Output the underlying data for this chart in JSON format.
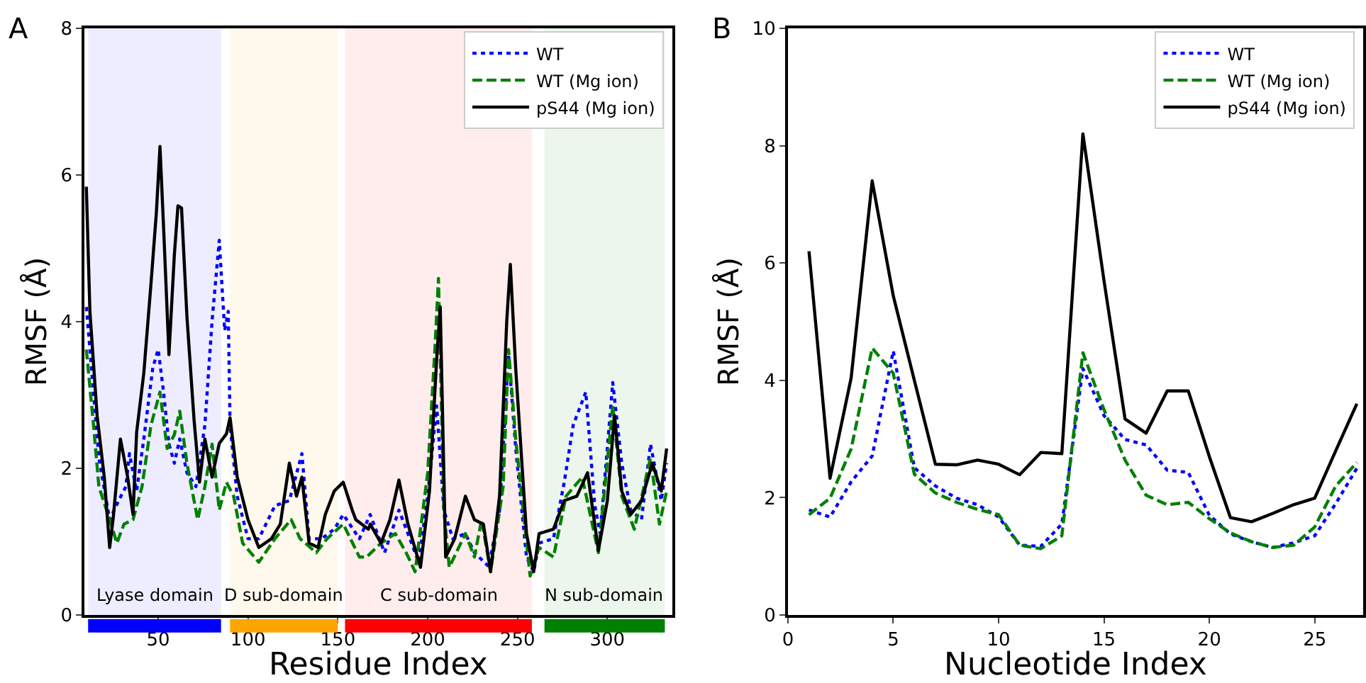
{
  "chart_data": [
    {
      "type": "line",
      "title": "A",
      "xlabel": "Residue Index",
      "ylabel": "RMSF (Å)",
      "xlim": [
        9,
        336
      ],
      "ylim": [
        0,
        8
      ],
      "xticks": [
        50,
        100,
        150,
        200,
        250,
        300
      ],
      "yticks": [
        0,
        2,
        4,
        6,
        8
      ],
      "grid": false,
      "legend": "top right",
      "marker": "none",
      "series": [
        {
          "name": "WT",
          "color": "#0000ff",
          "line_style": "dotted",
          "x": [
            10,
            14,
            17,
            23,
            28,
            32,
            34,
            38,
            42,
            47,
            50,
            53,
            56,
            59,
            62,
            66,
            71,
            76,
            80,
            84,
            87,
            89,
            90,
            94,
            100,
            106,
            115,
            123,
            130,
            134,
            141,
            148,
            153,
            162,
            168,
            176,
            184,
            189,
            195,
            200,
            205,
            209,
            214,
            221,
            226,
            234,
            240,
            245,
            249,
            255,
            259,
            262,
            270,
            276,
            281,
            288,
            293,
            296,
            303,
            308,
            313,
            319,
            324,
            330,
            333
          ],
          "values": [
            4.2,
            3.04,
            2.14,
            1.3,
            1.56,
            1.75,
            2.2,
            1.69,
            2.4,
            3.37,
            3.62,
            3.04,
            2.33,
            2.07,
            2.4,
            1.94,
            1.75,
            2.59,
            4.01,
            5.11,
            3.88,
            4.14,
            2.59,
            1.62,
            1.04,
            1.04,
            1.49,
            1.56,
            2.2,
            1.04,
            1.04,
            1.17,
            1.37,
            1.04,
            1.37,
            0.85,
            1.43,
            1.11,
            0.72,
            1.62,
            2.85,
            1.43,
            1.04,
            1.11,
            0.85,
            0.66,
            1.43,
            3.56,
            2.27,
            0.79,
            0.59,
            0.98,
            1.04,
            1.81,
            2.59,
            3.04,
            1.49,
            1.11,
            3.17,
            2.07,
            1.43,
            1.3,
            2.33,
            1.56,
            2.07
          ]
        },
        {
          "name": "WT (Mg ion)",
          "color": "#008000",
          "line_style": "dashed",
          "x": [
            10,
            14,
            17,
            23,
            27,
            31,
            36,
            41,
            46,
            51,
            55,
            59,
            62,
            66,
            72,
            76,
            80,
            84,
            88,
            92,
            97,
            106,
            115,
            124,
            129,
            138,
            144,
            153,
            162,
            166,
            174,
            182,
            188,
            193,
            200,
            204,
            206,
            209,
            212,
            221,
            226,
            230,
            235,
            242,
            245,
            249,
            257,
            262,
            270,
            277,
            286,
            295,
            303,
            308,
            315,
            324,
            329,
            333
          ],
          "values": [
            3.62,
            2.59,
            1.75,
            1.3,
            0.98,
            1.24,
            1.3,
            1.75,
            2.59,
            3.04,
            2.27,
            2.46,
            2.78,
            2.07,
            1.3,
            1.75,
            2.33,
            1.43,
            1.81,
            1.62,
            0.98,
            0.72,
            1.04,
            1.3,
            1.04,
            0.85,
            1.04,
            1.24,
            0.79,
            0.79,
            0.98,
            1.11,
            0.85,
            0.59,
            1.94,
            3.62,
            4.59,
            1.43,
            0.65,
            1.11,
            0.79,
            1.3,
            0.59,
            1.75,
            3.62,
            2.4,
            0.53,
            0.92,
            0.79,
            1.62,
            1.88,
            0.85,
            2.85,
            1.62,
            1.17,
            2.14,
            1.24,
            1.69
          ]
        },
        {
          "name": "pS44 (Mg ion)",
          "color": "#000000",
          "line_style": "solid",
          "x": [
            10,
            12,
            16,
            20,
            23,
            25,
            29,
            33,
            36,
            38,
            42,
            46,
            49,
            51,
            53,
            56,
            59,
            61,
            63,
            66,
            70,
            73,
            76,
            80,
            84,
            88,
            90,
            94,
            100,
            106,
            113,
            118,
            123,
            127,
            130,
            134,
            139,
            143,
            148,
            153,
            158,
            160,
            167,
            168,
            174,
            179,
            184,
            189,
            196,
            201,
            205,
            207,
            210,
            215,
            221,
            226,
            231,
            235,
            240,
            244,
            246,
            249,
            255,
            259,
            262,
            270,
            276,
            283,
            289,
            295,
            300,
            304,
            308,
            313,
            319,
            325,
            330,
            333
          ],
          "values": [
            5.84,
            4.14,
            2.72,
            1.88,
            0.92,
            1.33,
            2.4,
            1.88,
            1.37,
            2.49,
            3.3,
            4.52,
            5.49,
            6.39,
            5.29,
            3.55,
            4.91,
            5.58,
            5.55,
            4.07,
            2.65,
            1.81,
            2.4,
            1.88,
            2.34,
            2.47,
            2.69,
            1.88,
            1.3,
            0.92,
            1.04,
            1.24,
            2.07,
            1.62,
            1.88,
            0.98,
            0.92,
            1.37,
            1.69,
            1.81,
            1.43,
            1.3,
            1.17,
            1.24,
            0.98,
            1.3,
            1.84,
            1.24,
            0.65,
            1.69,
            3.49,
            4.2,
            0.79,
            1.04,
            1.62,
            1.3,
            1.24,
            0.59,
            1.62,
            4.01,
            4.78,
            3.36,
            1.11,
            0.59,
            1.11,
            1.17,
            1.56,
            1.62,
            1.94,
            0.88,
            1.56,
            2.72,
            1.69,
            1.37,
            1.56,
            2.07,
            1.69,
            2.27
          ]
        }
      ],
      "bands": [
        {
          "axis": "x",
          "from": 11,
          "to": 85,
          "label": "Lyase domain",
          "color": "#0000ff"
        },
        {
          "axis": "x",
          "from": 90,
          "to": 150,
          "label": "D sub-domain",
          "color": "#ffa500"
        },
        {
          "axis": "x",
          "from": 154,
          "to": 258,
          "label": "C sub-domain",
          "color": "#ff0000"
        },
        {
          "axis": "x",
          "from": 265,
          "to": 332,
          "label": "N sub-domain",
          "color": "#008000"
        }
      ]
    },
    {
      "type": "line",
      "title": "B",
      "xlabel": "Nucleotide Index",
      "ylabel": "RMSF (Å)",
      "xlim": [
        0,
        27.3
      ],
      "ylim": [
        0,
        10
      ],
      "xticks": [
        0,
        5,
        10,
        15,
        20,
        25
      ],
      "yticks": [
        0,
        2,
        4,
        6,
        8,
        10
      ],
      "grid": false,
      "legend": "top right",
      "marker": "none",
      "x": [
        1,
        2,
        3,
        4,
        5,
        6,
        7,
        8,
        9,
        10,
        11,
        12,
        13,
        14,
        15,
        16,
        17,
        18,
        19,
        20,
        21,
        22,
        23,
        24,
        25,
        26,
        27
      ],
      "series": [
        {
          "name": "WT",
          "color": "#0000ff",
          "line_style": "dotted",
          "values": [
            1.79,
            1.67,
            2.27,
            2.71,
            4.5,
            2.51,
            2.2,
            1.99,
            1.88,
            1.67,
            1.19,
            1.17,
            1.55,
            4.2,
            3.4,
            2.99,
            2.9,
            2.47,
            2.43,
            1.7,
            1.38,
            1.25,
            1.15,
            1.23,
            1.35,
            1.9,
            2.5
          ]
        },
        {
          "name": "WT (Mg ion)",
          "color": "#008000",
          "line_style": "dashed",
          "values": [
            1.71,
            1.99,
            2.83,
            4.55,
            4.12,
            2.4,
            2.08,
            1.92,
            1.8,
            1.71,
            1.19,
            1.13,
            1.35,
            4.47,
            3.5,
            2.64,
            2.04,
            1.88,
            1.92,
            1.64,
            1.4,
            1.25,
            1.15,
            1.19,
            1.5,
            2.2,
            2.6
          ]
        },
        {
          "name": "pS44 (Mg ion)",
          "color": "#000000",
          "line_style": "solid",
          "values": [
            6.2,
            2.33,
            4.04,
            7.4,
            5.44,
            4.0,
            2.57,
            2.56,
            2.64,
            2.57,
            2.39,
            2.77,
            2.75,
            8.2,
            5.7,
            3.34,
            3.1,
            3.82,
            3.82,
            2.7,
            1.66,
            1.59,
            1.73,
            1.88,
            1.99,
            2.8,
            3.6
          ]
        }
      ]
    }
  ]
}
